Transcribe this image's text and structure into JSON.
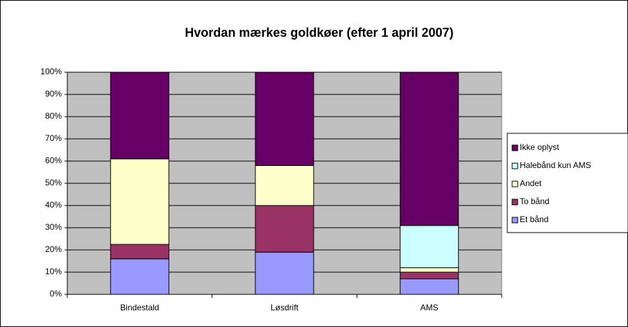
{
  "chart_data": {
    "type": "stacked_bar",
    "title": "Hvordan mærkes goldkøer (efter 1 april 2007)",
    "categories": [
      "Bindestald",
      "Løsdrift",
      "AMS"
    ],
    "series": [
      {
        "name": "Et bånd",
        "color": "#9999ff",
        "values": [
          16,
          19,
          7
        ]
      },
      {
        "name": "To bånd",
        "color": "#993366",
        "values": [
          6.5,
          21,
          3
        ]
      },
      {
        "name": "Andet",
        "color": "#ffffcc",
        "values": [
          38.5,
          18,
          2
        ]
      },
      {
        "name": "Halebånd kun AMS",
        "color": "#ccffff",
        "values": [
          0,
          0,
          19
        ]
      },
      {
        "name": "Ikke oplyst",
        "color": "#660066",
        "values": [
          39,
          42,
          69
        ]
      }
    ],
    "ylim": [
      0,
      100
    ],
    "yticks": [
      {
        "value": 0,
        "label": "0%"
      },
      {
        "value": 10,
        "label": "10%"
      },
      {
        "value": 20,
        "label": "20%"
      },
      {
        "value": 30,
        "label": "30%"
      },
      {
        "value": 40,
        "label": "40%"
      },
      {
        "value": 50,
        "label": "50%"
      },
      {
        "value": 60,
        "label": "60%"
      },
      {
        "value": 70,
        "label": "70%"
      },
      {
        "value": 80,
        "label": "80%"
      },
      {
        "value": 90,
        "label": "90%"
      },
      {
        "value": 100,
        "label": "100%"
      }
    ],
    "grid": true,
    "legend": "right"
  }
}
